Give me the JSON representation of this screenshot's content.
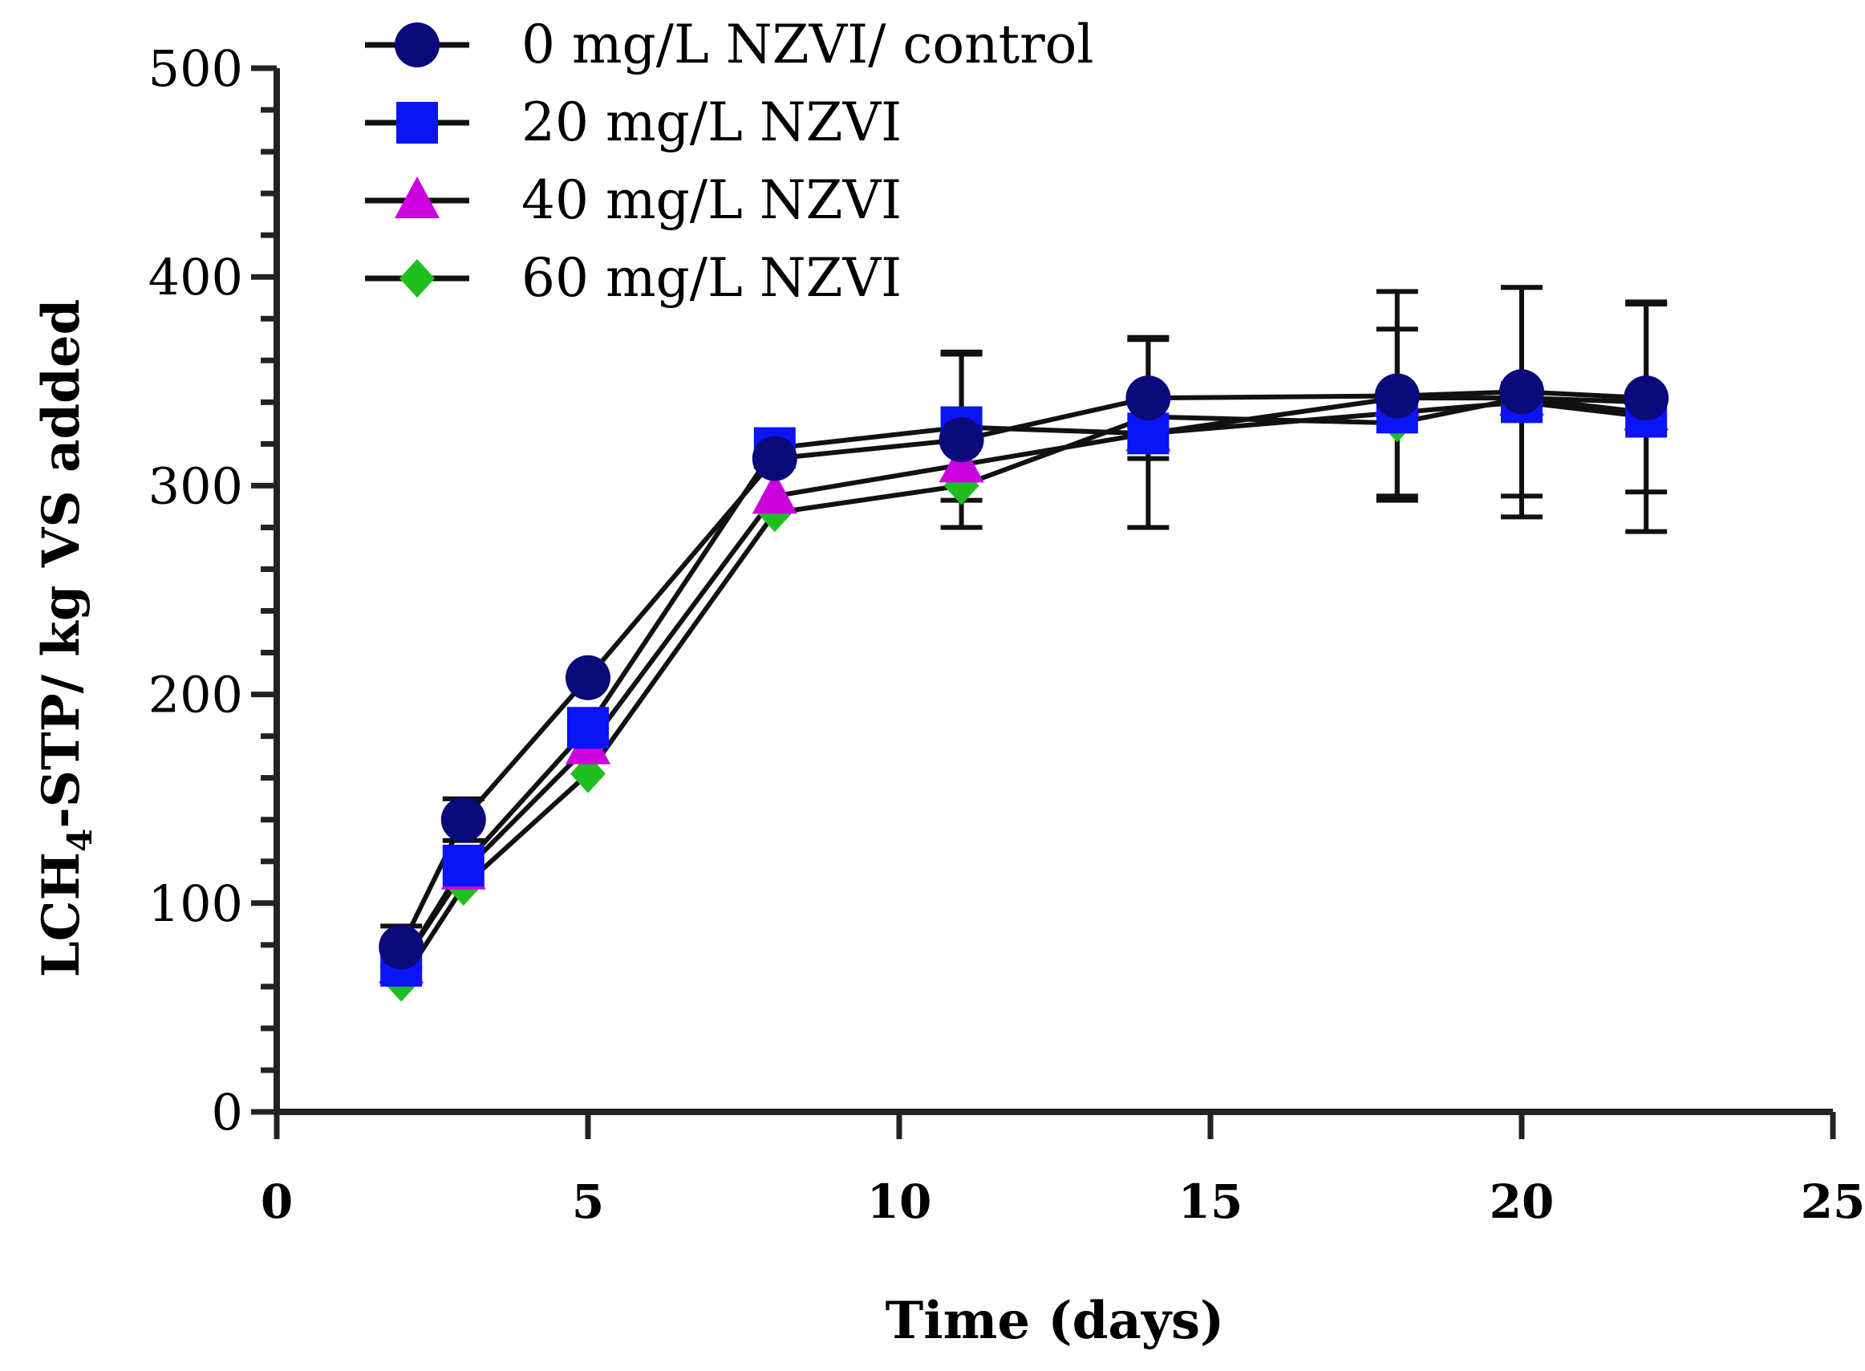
{
  "chart_data": {
    "type": "line",
    "title": "",
    "xlabel": "Time (days)",
    "ylabel_parts": [
      "LCH",
      "4",
      "-STP/ kg VS added"
    ],
    "xlim": [
      0,
      25
    ],
    "ylim": [
      0,
      500
    ],
    "xticks": [
      "0",
      "5",
      "10",
      "15",
      "20",
      "25"
    ],
    "yticks": [
      "0",
      "100",
      "200",
      "300",
      "400",
      "500"
    ],
    "grid": false,
    "legend_position": "top-left",
    "x": [
      2,
      3,
      5,
      8,
      11,
      14,
      18,
      20,
      22
    ],
    "series": [
      {
        "name": "60 mg/L NZVI",
        "marker": "diamond",
        "color": "#1fbf1f",
        "values": [
          62,
          108,
          162,
          287,
          300,
          333,
          330,
          342,
          340
        ],
        "errors": [
          0,
          0,
          0,
          0,
          0,
          0,
          0,
          0,
          0
        ]
      },
      {
        "name": "40 mg/L NZVI",
        "marker": "triangle",
        "color": "#cc00dd",
        "values": [
          70,
          115,
          175,
          295,
          310,
          325,
          342,
          342,
          335
        ],
        "errors": [
          0,
          0,
          0,
          0,
          0,
          0,
          0,
          0,
          0
        ]
      },
      {
        "name": "20 mg/L NZVI",
        "marker": "square",
        "color": "#0a14f5",
        "values": [
          70,
          118,
          184,
          318,
          328,
          325,
          335,
          340,
          333
        ],
        "errors": [
          0,
          0,
          0,
          0,
          35,
          45,
          40,
          55,
          55
        ]
      },
      {
        "name": "0 mg/L NZVI/ control",
        "marker": "circle",
        "color": "#0a0a7a",
        "values": [
          79,
          140,
          208,
          313,
          322,
          342,
          343,
          345,
          342
        ],
        "errors": [
          10,
          10,
          0,
          0,
          42,
          29,
          50,
          50,
          45
        ]
      }
    ],
    "legend_order": [
      3,
      2,
      1,
      0
    ]
  }
}
